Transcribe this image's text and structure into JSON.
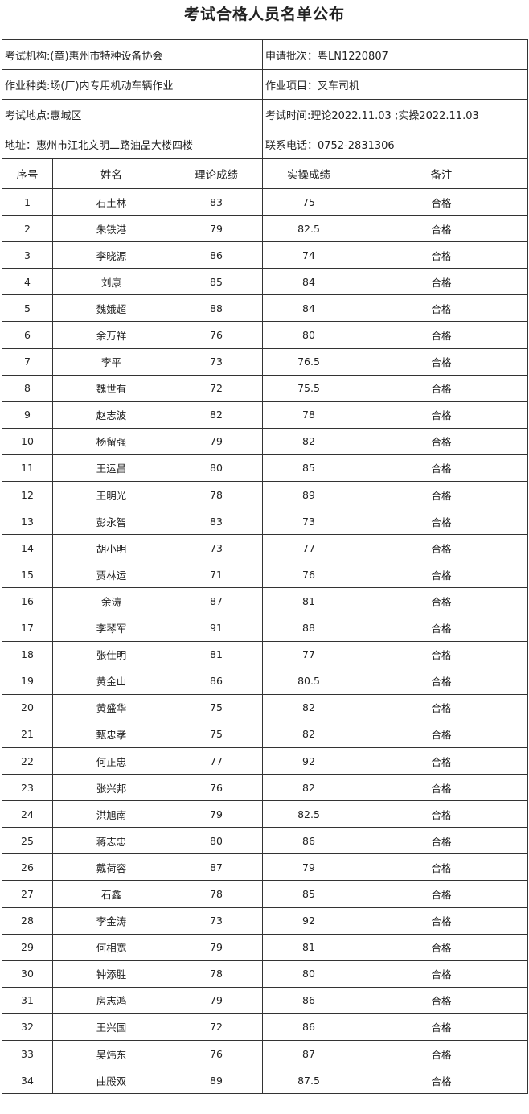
{
  "title": "考试合格人员名单公布",
  "info": {
    "institution": "考试机构:(章)惠州市特种设备协会",
    "batch": "申请批次：粤LN1220807",
    "category": "作业种类:场(厂)内专用机动车辆作业",
    "item": "作业项目：叉车司机",
    "location": "考试地点:惠城区",
    "time": "考试时间:理论2022.11.03 ;实操2022.11.03",
    "address": "地址：惠州市江北文明二路油品大楼四楼",
    "phone": "联系电话：0752-2831306"
  },
  "headers": [
    "序号",
    "姓名",
    "理论成绩",
    "实操成绩",
    "备注"
  ],
  "rows": [
    [
      "1",
      "石土林",
      "83",
      "75",
      "合格"
    ],
    [
      "2",
      "朱铁港",
      "79",
      "82.5",
      "合格"
    ],
    [
      "3",
      "李晓源",
      "86",
      "74",
      "合格"
    ],
    [
      "4",
      "刘康",
      "85",
      "84",
      "合格"
    ],
    [
      "5",
      "魏娥超",
      "88",
      "84",
      "合格"
    ],
    [
      "6",
      "余万祥",
      "76",
      "80",
      "合格"
    ],
    [
      "7",
      "李平",
      "73",
      "76.5",
      "合格"
    ],
    [
      "8",
      "魏世有",
      "72",
      "75.5",
      "合格"
    ],
    [
      "9",
      "赵志波",
      "82",
      "78",
      "合格"
    ],
    [
      "10",
      "杨留强",
      "79",
      "82",
      "合格"
    ],
    [
      "11",
      "王运昌",
      "80",
      "85",
      "合格"
    ],
    [
      "12",
      "王明光",
      "78",
      "89",
      "合格"
    ],
    [
      "13",
      "彭永智",
      "83",
      "73",
      "合格"
    ],
    [
      "14",
      "胡小明",
      "73",
      "77",
      "合格"
    ],
    [
      "15",
      "贾林运",
      "71",
      "76",
      "合格"
    ],
    [
      "16",
      "余涛",
      "87",
      "81",
      "合格"
    ],
    [
      "17",
      "李琴军",
      "91",
      "88",
      "合格"
    ],
    [
      "18",
      "张仕明",
      "81",
      "77",
      "合格"
    ],
    [
      "19",
      "黄金山",
      "86",
      "80.5",
      "合格"
    ],
    [
      "20",
      "黄盛华",
      "75",
      "82",
      "合格"
    ],
    [
      "21",
      "甄忠孝",
      "75",
      "82",
      "合格"
    ],
    [
      "22",
      "何正忠",
      "77",
      "92",
      "合格"
    ],
    [
      "23",
      "张兴邦",
      "76",
      "82",
      "合格"
    ],
    [
      "24",
      "洪旭南",
      "79",
      "82.5",
      "合格"
    ],
    [
      "25",
      "蒋志忠",
      "80",
      "86",
      "合格"
    ],
    [
      "26",
      "戴荷容",
      "87",
      "79",
      "合格"
    ],
    [
      "27",
      "石鑫",
      "78",
      "85",
      "合格"
    ],
    [
      "28",
      "李金涛",
      "73",
      "92",
      "合格"
    ],
    [
      "29",
      "何相宽",
      "79",
      "81",
      "合格"
    ],
    [
      "30",
      "钟添胜",
      "78",
      "80",
      "合格"
    ],
    [
      "31",
      "房志鸿",
      "79",
      "86",
      "合格"
    ],
    [
      "32",
      "王兴国",
      "72",
      "86",
      "合格"
    ],
    [
      "33",
      "吴炜东",
      "76",
      "87",
      "合格"
    ],
    [
      "34",
      "曲殿双",
      "89",
      "87.5",
      "合格"
    ]
  ]
}
